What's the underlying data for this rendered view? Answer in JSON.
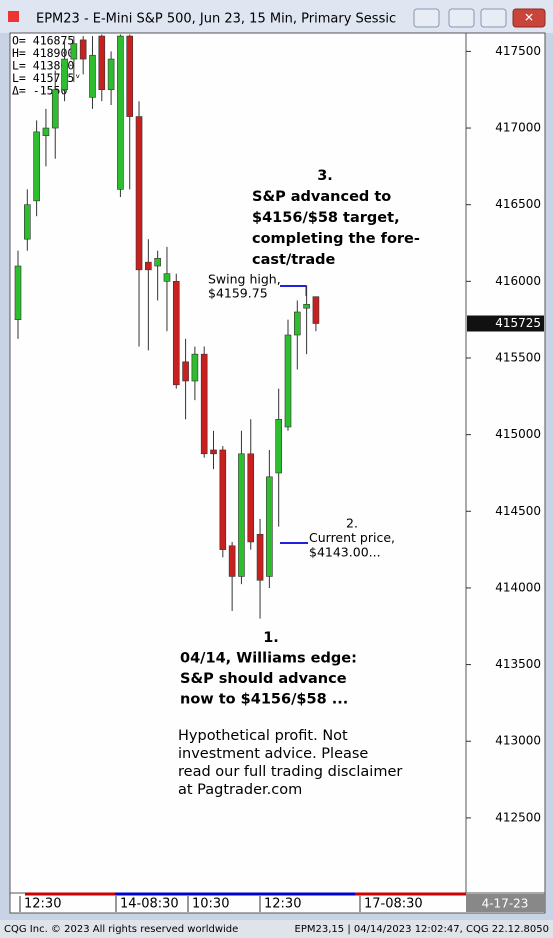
{
  "window_title": "EPM23 - E-Mini S&P 500, Jun 23, 15 Min, Primary Sessic",
  "chart_data": {
    "type": "candlestick",
    "ohlc_box": [
      "O=  416875",
      "H=  418900",
      "L=  413800",
      "L=  415725ᵛ",
      "Δ=    -1550"
    ],
    "open": [
      415750,
      416275,
      416525,
      416950,
      417000,
      417250,
      417450,
      417575,
      417200,
      417600,
      417250,
      416600,
      417600,
      417075,
      416125,
      416100,
      416000,
      416000,
      415475,
      415350,
      415525,
      414900,
      414900,
      414275,
      414075,
      414875,
      414350,
      414075,
      414750,
      415050,
      415650,
      415825,
      415900
    ],
    "high": [
      416200,
      416600,
      417050,
      417125,
      417375,
      417575,
      417600,
      417600,
      417600,
      417610,
      417500,
      417610,
      417610,
      417175,
      416275,
      416200,
      416225,
      416050,
      415625,
      415575,
      415575,
      415025,
      414925,
      414300,
      415025,
      415100,
      414450,
      414900,
      415300,
      415750,
      415875,
      415975,
      415900
    ],
    "low": [
      415625,
      416200,
      416425,
      416750,
      416800,
      417175,
      417300,
      417350,
      417125,
      417175,
      417150,
      416550,
      416600,
      415575,
      415550,
      415875,
      415675,
      415300,
      415100,
      415225,
      414850,
      414775,
      414200,
      413850,
      414025,
      414250,
      413800,
      414000,
      414400,
      415025,
      415425,
      415525,
      415675
    ],
    "close": [
      416100,
      416500,
      416975,
      417000,
      417250,
      417450,
      417550,
      417450,
      417475,
      417250,
      417450,
      417600,
      417075,
      416075,
      416075,
      416150,
      416050,
      415325,
      415350,
      415525,
      414875,
      414875,
      414250,
      414075,
      414875,
      414300,
      414050,
      414725,
      415100,
      415650,
      415800,
      415850,
      415725
    ],
    "up_color": "#2ebd2e",
    "down_color": "#c8201e",
    "ylim": [
      412010,
      417620
    ],
    "yticks": [
      412500,
      413000,
      413500,
      414000,
      414500,
      415000,
      415500,
      416000,
      416500,
      417000,
      417500
    ],
    "last_price": "415725",
    "x_labels": [
      "12:30",
      "14-08:30",
      "10:30",
      "12:30",
      "17-08:30"
    ],
    "date_label": "4-17-23",
    "annotations": {
      "note3": [
        "3.",
        "S&P advanced to",
        "$4156/$58 target,",
        "completing the fore-",
        "cast/trade"
      ],
      "swing": [
        "Swing high,",
        "$4159.75"
      ],
      "note2": [
        "2.",
        "Current price,",
        "$4143.00..."
      ],
      "note1": [
        "1.",
        "04/14, Williams edge:",
        "S&P should advance",
        "now to $4156/$58 ..."
      ],
      "disclaimer": [
        "Hypothetical profit. Not",
        "investment advice. Please",
        "read our full trading disclaimer",
        "at Pagtrader.com"
      ]
    }
  },
  "status_bar": {
    "left": "CQG Inc. © 2023 All rights reserved worldwide",
    "right": "EPM23,15 | 04/14/2023 12:02:47, CQG 22.12.8050"
  }
}
